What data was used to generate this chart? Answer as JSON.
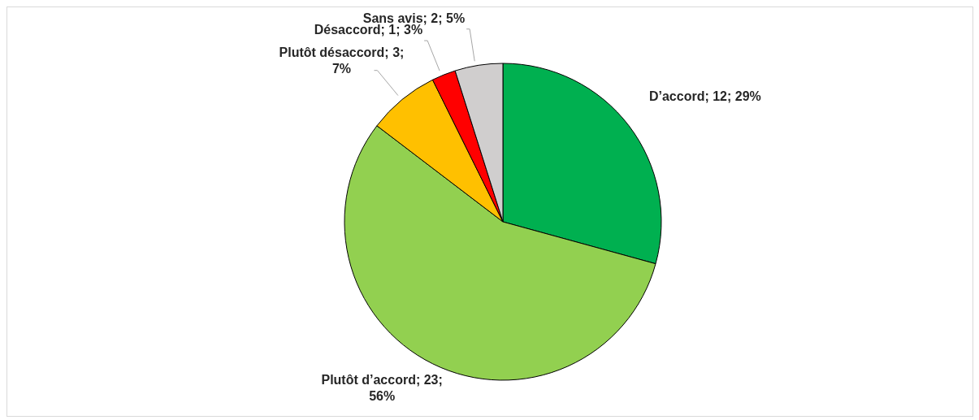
{
  "chart_data": {
    "type": "pie",
    "categories": [
      "D’accord",
      "Plutôt d’accord",
      "Plutôt désaccord",
      "Désaccord",
      "Sans avis"
    ],
    "values": [
      12,
      23,
      3,
      1,
      2
    ],
    "colors": [
      "#00b050",
      "#92d050",
      "#ffc000",
      "#ff0000",
      "#d0cece"
    ],
    "value_labels": [
      "12; 29%",
      "23; 56%",
      "3; 7%",
      "1; 3%",
      "2; 5%"
    ]
  }
}
